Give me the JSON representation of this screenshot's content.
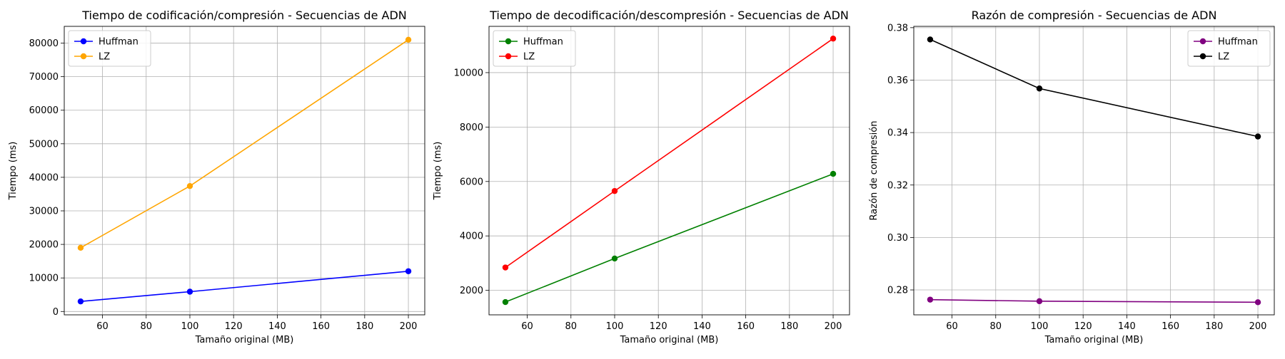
{
  "chart_data": [
    {
      "type": "line",
      "title": "Tiempo de codificación/compresión - Secuencias de ADN",
      "xlabel": "Tamaño original (MB)",
      "ylabel": "Tiempo (ms)",
      "x": [
        50,
        100,
        200
      ],
      "xlim": [
        42.5,
        207.5
      ],
      "ylim": [
        -1000,
        85000
      ],
      "xticks": [
        60,
        80,
        100,
        120,
        140,
        160,
        180,
        200
      ],
      "yticks": [
        0,
        10000,
        20000,
        30000,
        40000,
        50000,
        60000,
        70000,
        80000
      ],
      "xtick_labels": [
        "60",
        "80",
        "100",
        "120",
        "140",
        "160",
        "180",
        "200"
      ],
      "ytick_labels": [
        "0",
        "10000",
        "20000",
        "30000",
        "40000",
        "50000",
        "60000",
        "70000",
        "80000"
      ],
      "grid": true,
      "legend_position": "top-left",
      "series": [
        {
          "name": "Huffman",
          "color": "#0000ff",
          "values": [
            3000,
            5900,
            12000
          ]
        },
        {
          "name": "LZ",
          "color": "#ffa500",
          "values": [
            19000,
            37400,
            81000
          ]
        }
      ]
    },
    {
      "type": "line",
      "title": "Tiempo de decodificación/descompresión - Secuencias de ADN",
      "xlabel": "Tamaño original (MB)",
      "ylabel": "Tiempo (ms)",
      "x": [
        50,
        100,
        200
      ],
      "xlim": [
        42.5,
        207.5
      ],
      "ylim": [
        1100,
        11700
      ],
      "xticks": [
        60,
        80,
        100,
        120,
        140,
        160,
        180,
        200
      ],
      "yticks": [
        2000,
        4000,
        6000,
        8000,
        10000
      ],
      "xtick_labels": [
        "60",
        "80",
        "100",
        "120",
        "140",
        "160",
        "180",
        "200"
      ],
      "ytick_labels": [
        "2000",
        "4000",
        "6000",
        "8000",
        "10000"
      ],
      "grid": true,
      "legend_position": "top-left",
      "series": [
        {
          "name": "Huffman",
          "color": "#008000",
          "values": [
            1570,
            3170,
            6280
          ]
        },
        {
          "name": "LZ",
          "color": "#ff0000",
          "values": [
            2840,
            5650,
            11250
          ]
        }
      ]
    },
    {
      "type": "line",
      "title": "Razón de compresión - Secuencias de ADN",
      "xlabel": "Tamaño original (MB)",
      "ylabel": "Razón de compresión",
      "x": [
        50,
        100,
        200
      ],
      "xlim": [
        42.5,
        207.5
      ],
      "ylim": [
        0.2705,
        0.3805
      ],
      "xticks": [
        60,
        80,
        100,
        120,
        140,
        160,
        180,
        200
      ],
      "yticks": [
        0.28,
        0.3,
        0.32,
        0.34,
        0.36,
        0.38
      ],
      "xtick_labels": [
        "60",
        "80",
        "100",
        "120",
        "140",
        "160",
        "180",
        "200"
      ],
      "ytick_labels": [
        "0.28",
        "0.30",
        "0.32",
        "0.34",
        "0.36",
        "0.38"
      ],
      "grid": true,
      "legend_position": "top-right",
      "series": [
        {
          "name": "Huffman",
          "color": "#800080",
          "values": [
            0.2763,
            0.2757,
            0.2753
          ]
        },
        {
          "name": "LZ",
          "color": "#000000",
          "values": [
            0.3755,
            0.3568,
            0.3385
          ]
        }
      ]
    }
  ]
}
